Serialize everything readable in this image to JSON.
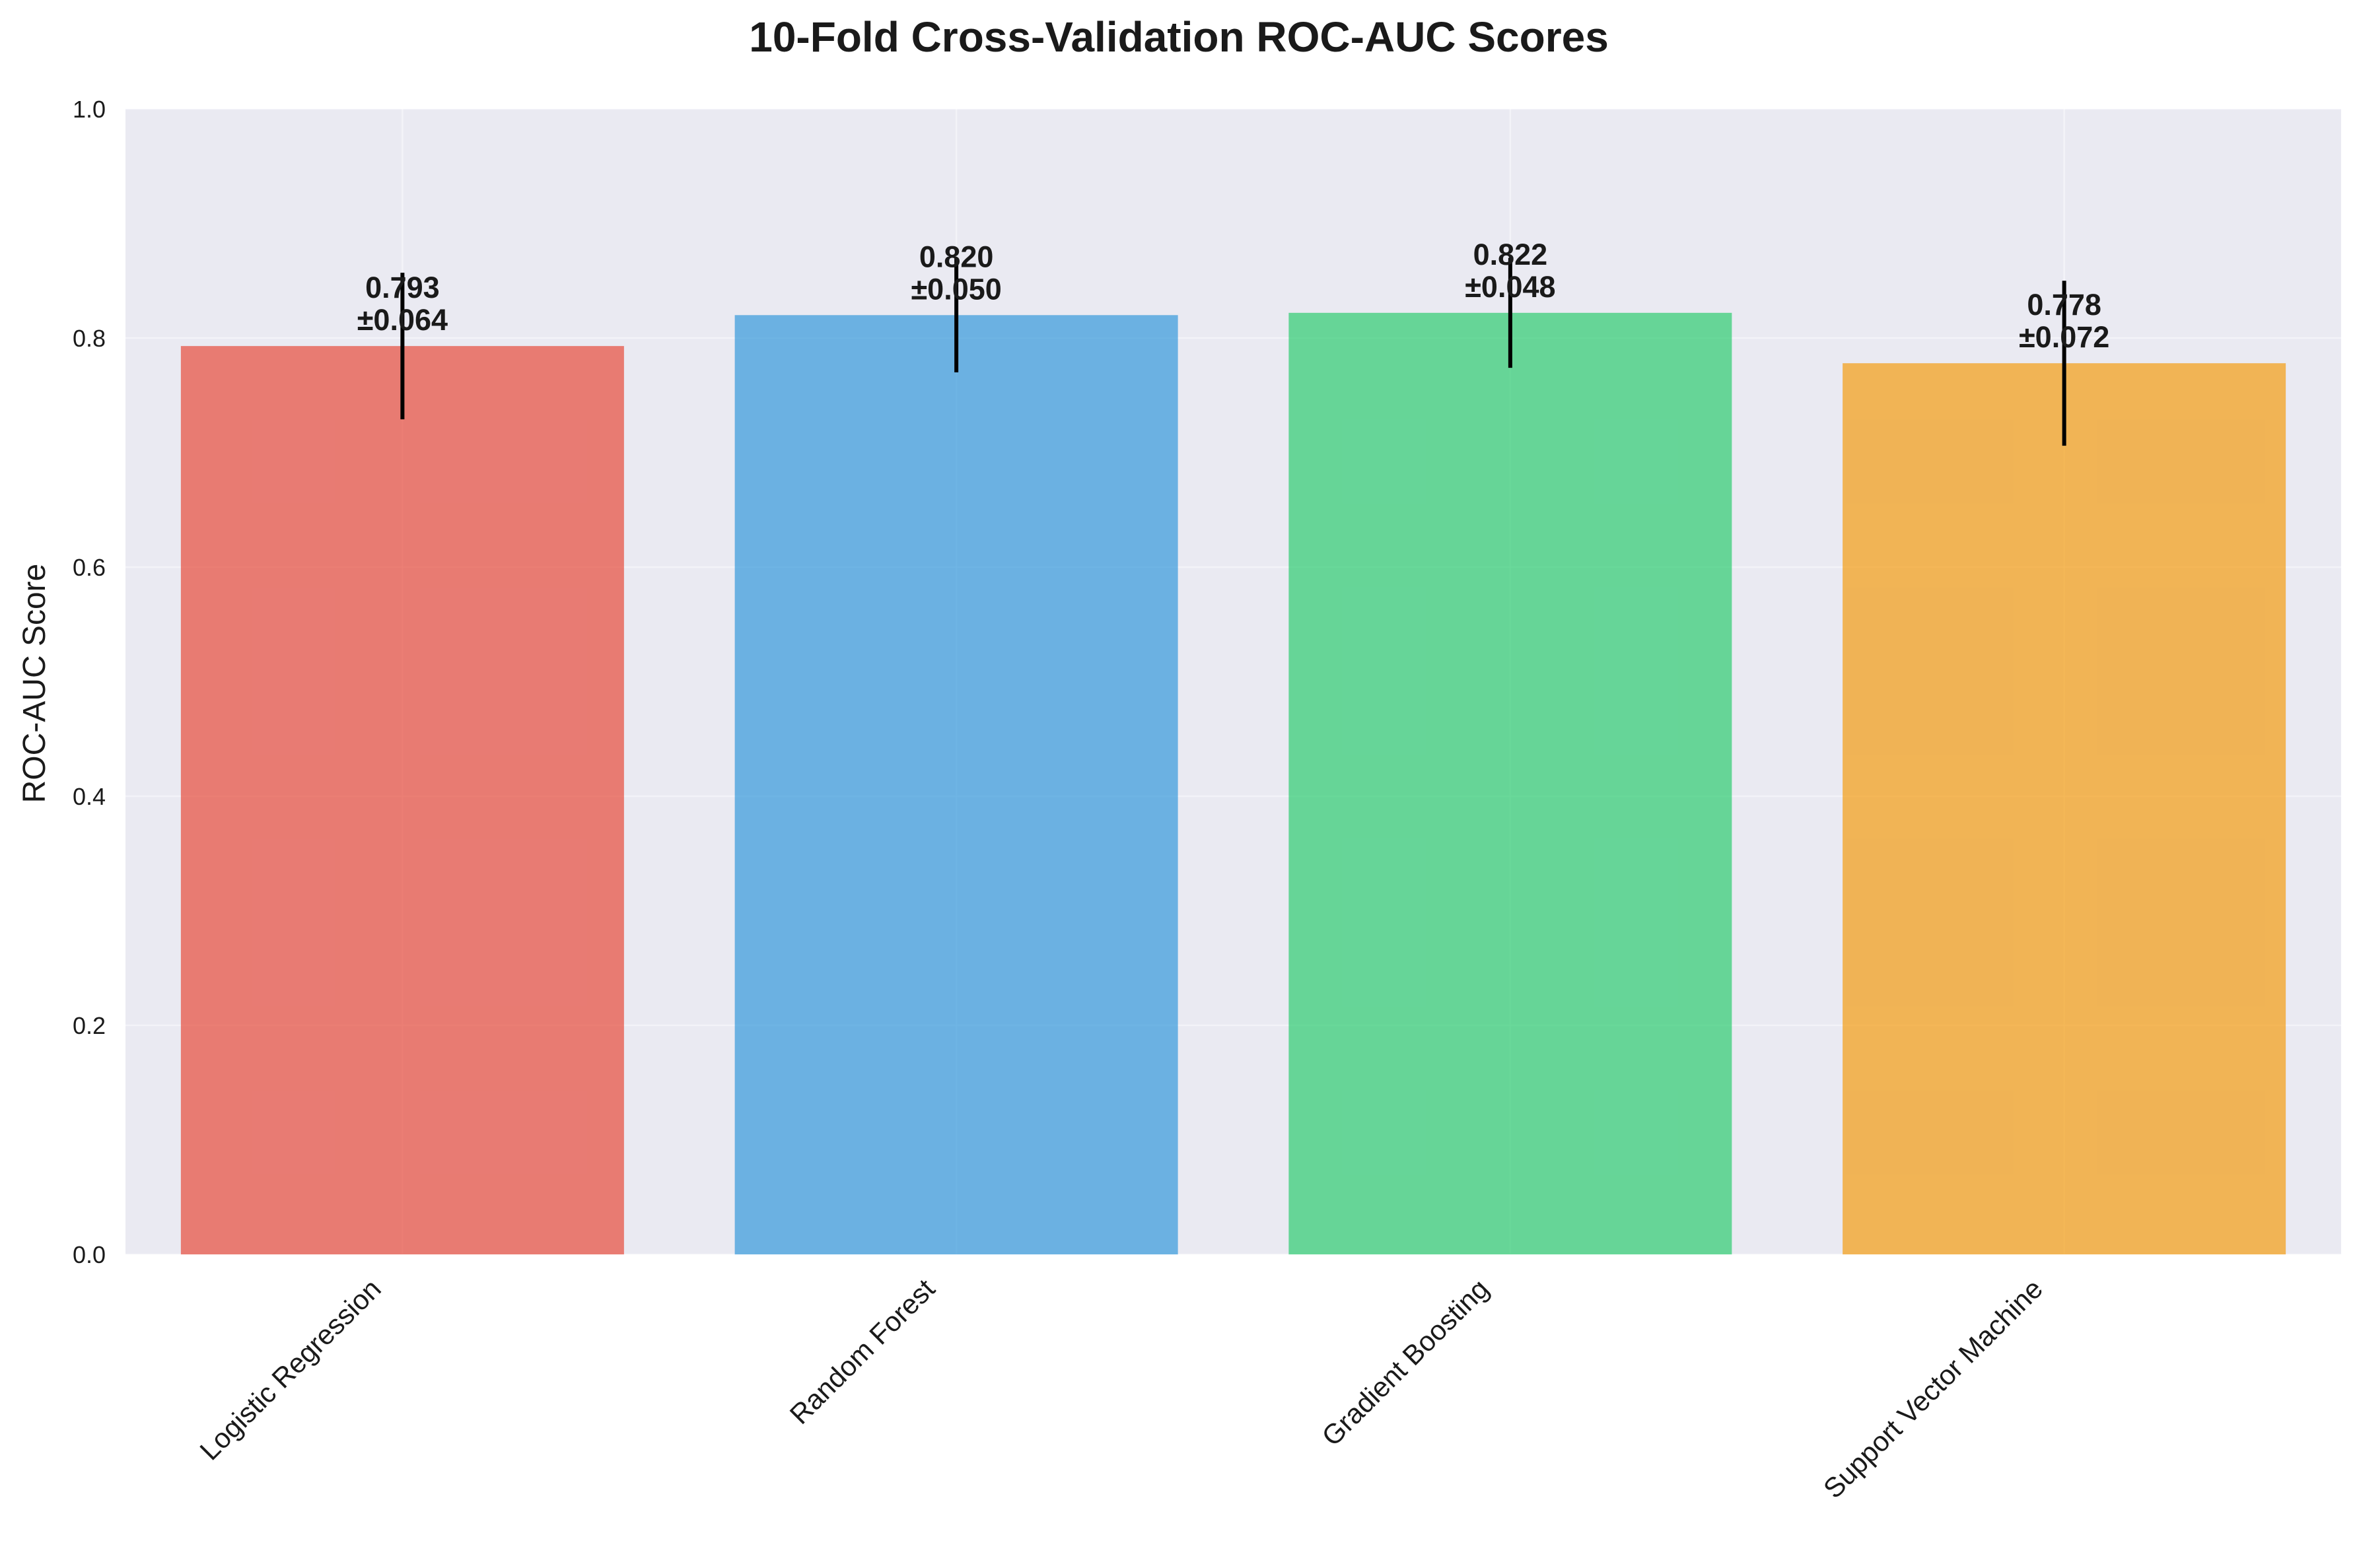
{
  "chart_data": {
    "type": "bar",
    "title": "10-Fold Cross-Validation ROC-AUC Scores",
    "xlabel": "",
    "ylabel": "ROC-AUC Score",
    "ylim": [
      0,
      1.0
    ],
    "yticks": [
      0.0,
      0.2,
      0.4,
      0.6,
      0.8,
      1.0
    ],
    "ytick_labels": [
      "0.0",
      "0.2",
      "0.4",
      "0.6",
      "0.8",
      "1.0"
    ],
    "grid": true,
    "categories": [
      "Logistic Regression",
      "Random Forest",
      "Gradient Boosting",
      "Support Vector Machine"
    ],
    "values": [
      0.793,
      0.82,
      0.822,
      0.778
    ],
    "errors": [
      0.064,
      0.05,
      0.048,
      0.072
    ],
    "value_labels": [
      "0.793",
      "0.820",
      "0.822",
      "0.778"
    ],
    "error_labels": [
      "±0.064",
      "±0.050",
      "±0.048",
      "±0.072"
    ],
    "colors": [
      "#e74c3c",
      "#3498db",
      "#2ecc71",
      "#f39c12"
    ],
    "plot_background": "#eaeaf2"
  }
}
